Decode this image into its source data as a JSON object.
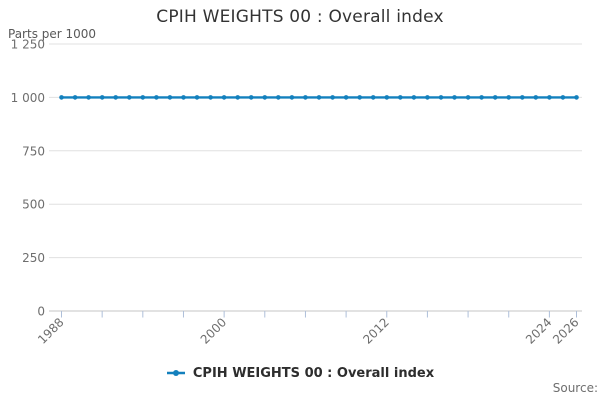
{
  "title": "CPIH WEIGHTS 00 : Overall index",
  "y_axis_unit_label": "Parts per 1000",
  "source_label": "Source:",
  "legend": {
    "label": "CPIH WEIGHTS 00 : Overall index"
  },
  "colors": {
    "series": "#1380bd",
    "grid": "#e0e0e0",
    "axis_line": "#c6c6c6",
    "tick_mark": "#aebfd9",
    "tick_text": "#6e6e6e",
    "title_text": "#333333"
  },
  "chart_data": {
    "type": "line",
    "title": "CPIH WEIGHTS 00 : Overall index",
    "ylabel": "Parts per 1000",
    "xlabel": "",
    "x": [
      1988,
      1989,
      1990,
      1991,
      1992,
      1993,
      1994,
      1995,
      1996,
      1997,
      1998,
      1999,
      2000,
      2001,
      2002,
      2003,
      2004,
      2005,
      2006,
      2007,
      2008,
      2009,
      2010,
      2011,
      2012,
      2013,
      2014,
      2015,
      2016,
      2017,
      2018,
      2019,
      2020,
      2021,
      2022,
      2023,
      2024,
      2025,
      2026
    ],
    "series": [
      {
        "name": "CPIH WEIGHTS 00 : Overall index",
        "values": [
          1000,
          1000,
          1000,
          1000,
          1000,
          1000,
          1000,
          1000,
          1000,
          1000,
          1000,
          1000,
          1000,
          1000,
          1000,
          1000,
          1000,
          1000,
          1000,
          1000,
          1000,
          1000,
          1000,
          1000,
          1000,
          1000,
          1000,
          1000,
          1000,
          1000,
          1000,
          1000,
          1000,
          1000,
          1000,
          1000,
          1000,
          1000,
          1000
        ]
      }
    ],
    "ylim": [
      0,
      1250
    ],
    "yticks": [
      0,
      250,
      500,
      750,
      1000,
      1250
    ],
    "ytick_labels": [
      "0",
      "250",
      "500",
      "750",
      "1 000",
      "1 250"
    ],
    "xticks": [
      1988,
      1991,
      1994,
      1997,
      2000,
      2003,
      2006,
      2009,
      2012,
      2015,
      2018,
      2021,
      2024,
      2026
    ],
    "xtick_labeled": [
      1988,
      2000,
      2012,
      2024,
      2026
    ],
    "grid": true,
    "legend_position": "bottom",
    "marker": "circle"
  }
}
